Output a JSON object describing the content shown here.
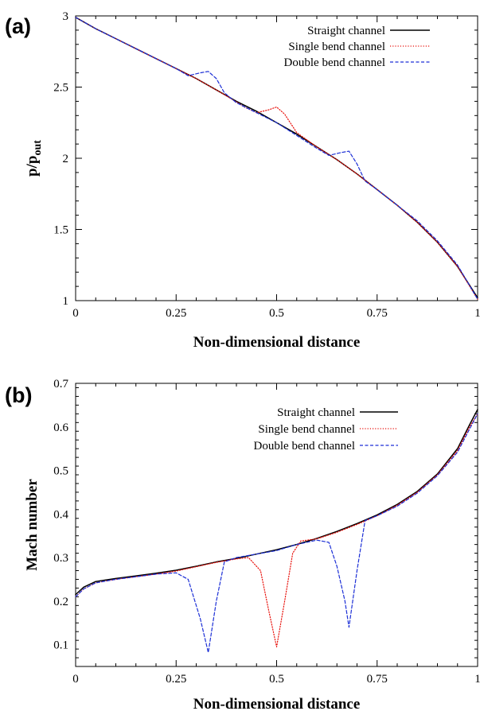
{
  "chart_data": [
    {
      "panel_label": "(a)",
      "type": "line",
      "xlabel": "Non-dimensional distance",
      "ylabel_main": "p/p",
      "ylabel_sub": "out",
      "xlim": [
        0,
        1
      ],
      "ylim": [
        1,
        3
      ],
      "xticks": [
        0,
        0.25,
        0.5,
        0.75,
        1
      ],
      "xtick_labels": [
        "0",
        "0.25",
        "0.5",
        "0.75",
        "1"
      ],
      "yticks": [
        1,
        1.5,
        2,
        2.5,
        3
      ],
      "ytick_labels": [
        "1",
        "1.5",
        "2",
        "2.5",
        "3"
      ],
      "grid": false,
      "legend_position": "top-right",
      "series": [
        {
          "name": "Straight channel",
          "color": "#000000",
          "dash": "solid",
          "x": [
            0,
            0.05,
            0.1,
            0.15,
            0.2,
            0.25,
            0.3,
            0.35,
            0.4,
            0.45,
            0.5,
            0.55,
            0.6,
            0.65,
            0.7,
            0.75,
            0.8,
            0.85,
            0.9,
            0.95,
            1.0
          ],
          "y": [
            2.99,
            2.91,
            2.84,
            2.77,
            2.7,
            2.63,
            2.56,
            2.48,
            2.4,
            2.33,
            2.25,
            2.17,
            2.08,
            1.99,
            1.89,
            1.78,
            1.67,
            1.55,
            1.41,
            1.24,
            1.02
          ]
        },
        {
          "name": "Single bend channel",
          "color": "#e8120c",
          "dash": "dotted",
          "x": [
            0,
            0.05,
            0.1,
            0.15,
            0.2,
            0.25,
            0.3,
            0.35,
            0.38,
            0.42,
            0.45,
            0.48,
            0.5,
            0.52,
            0.55,
            0.6,
            0.65,
            0.7,
            0.75,
            0.8,
            0.85,
            0.9,
            0.95,
            1.0
          ],
          "y": [
            2.99,
            2.91,
            2.84,
            2.77,
            2.7,
            2.63,
            2.56,
            2.48,
            2.43,
            2.36,
            2.32,
            2.34,
            2.36,
            2.31,
            2.18,
            2.08,
            1.99,
            1.89,
            1.78,
            1.67,
            1.55,
            1.41,
            1.24,
            1.01
          ]
        },
        {
          "name": "Double bend channel",
          "color": "#1c2fd6",
          "dash": "dashed",
          "x": [
            0,
            0.05,
            0.1,
            0.15,
            0.2,
            0.25,
            0.28,
            0.31,
            0.33,
            0.35,
            0.37,
            0.4,
            0.45,
            0.5,
            0.55,
            0.6,
            0.63,
            0.66,
            0.68,
            0.7,
            0.72,
            0.75,
            0.8,
            0.85,
            0.9,
            0.95,
            1.0
          ],
          "y": [
            2.99,
            2.91,
            2.84,
            2.77,
            2.7,
            2.63,
            2.58,
            2.6,
            2.61,
            2.56,
            2.46,
            2.39,
            2.32,
            2.25,
            2.16,
            2.07,
            2.02,
            2.04,
            2.05,
            1.96,
            1.84,
            1.78,
            1.67,
            1.56,
            1.42,
            1.25,
            1.01
          ]
        }
      ]
    },
    {
      "panel_label": "(b)",
      "type": "line",
      "xlabel": "Non-dimensional distance",
      "ylabel_main": "Mach number",
      "ylabel_sub": "",
      "xlim": [
        0,
        1
      ],
      "ylim": [
        0.05,
        0.7
      ],
      "xticks": [
        0,
        0.25,
        0.5,
        0.75,
        1
      ],
      "xtick_labels": [
        "0",
        "0.25",
        "0.5",
        "0.75",
        "1"
      ],
      "yticks": [
        0.1,
        0.2,
        0.3,
        0.4,
        0.5,
        0.6,
        0.7
      ],
      "ytick_labels": [
        "0.1",
        "0.2",
        "0.3",
        "0.4",
        "0.5",
        "0.6",
        "0.7"
      ],
      "grid": false,
      "legend_position": "top-center",
      "series": [
        {
          "name": "Straight channel",
          "color": "#000000",
          "dash": "solid",
          "x": [
            0,
            0.02,
            0.05,
            0.1,
            0.15,
            0.2,
            0.25,
            0.3,
            0.35,
            0.4,
            0.45,
            0.5,
            0.55,
            0.6,
            0.65,
            0.7,
            0.75,
            0.8,
            0.85,
            0.9,
            0.95,
            0.98,
            1.0
          ],
          "y": [
            0.215,
            0.232,
            0.245,
            0.252,
            0.258,
            0.264,
            0.271,
            0.28,
            0.29,
            0.298,
            0.308,
            0.318,
            0.33,
            0.344,
            0.36,
            0.378,
            0.398,
            0.422,
            0.452,
            0.492,
            0.55,
            0.605,
            0.64
          ]
        },
        {
          "name": "Single bend channel",
          "color": "#e8120c",
          "dash": "dotted",
          "x": [
            0,
            0.02,
            0.05,
            0.1,
            0.15,
            0.2,
            0.25,
            0.3,
            0.35,
            0.4,
            0.43,
            0.46,
            0.48,
            0.5,
            0.52,
            0.54,
            0.56,
            0.6,
            0.65,
            0.7,
            0.75,
            0.8,
            0.85,
            0.9,
            0.95,
            0.98,
            1.0
          ],
          "y": [
            0.21,
            0.228,
            0.242,
            0.25,
            0.256,
            0.262,
            0.269,
            0.279,
            0.289,
            0.297,
            0.3,
            0.27,
            0.18,
            0.095,
            0.2,
            0.31,
            0.338,
            0.343,
            0.358,
            0.376,
            0.396,
            0.42,
            0.45,
            0.49,
            0.546,
            0.6,
            0.63
          ]
        },
        {
          "name": "Double bend channel",
          "color": "#1c2fd6",
          "dash": "dashed",
          "x": [
            0,
            0.02,
            0.05,
            0.1,
            0.15,
            0.2,
            0.25,
            0.28,
            0.31,
            0.33,
            0.35,
            0.37,
            0.4,
            0.45,
            0.5,
            0.55,
            0.6,
            0.63,
            0.65,
            0.67,
            0.68,
            0.7,
            0.72,
            0.75,
            0.8,
            0.85,
            0.9,
            0.95,
            0.98,
            1.0
          ],
          "y": [
            0.21,
            0.228,
            0.242,
            0.25,
            0.256,
            0.262,
            0.265,
            0.25,
            0.16,
            0.082,
            0.2,
            0.29,
            0.3,
            0.308,
            0.316,
            0.33,
            0.34,
            0.335,
            0.28,
            0.2,
            0.14,
            0.27,
            0.385,
            0.396,
            0.418,
            0.448,
            0.488,
            0.542,
            0.595,
            0.63
          ]
        }
      ]
    }
  ]
}
